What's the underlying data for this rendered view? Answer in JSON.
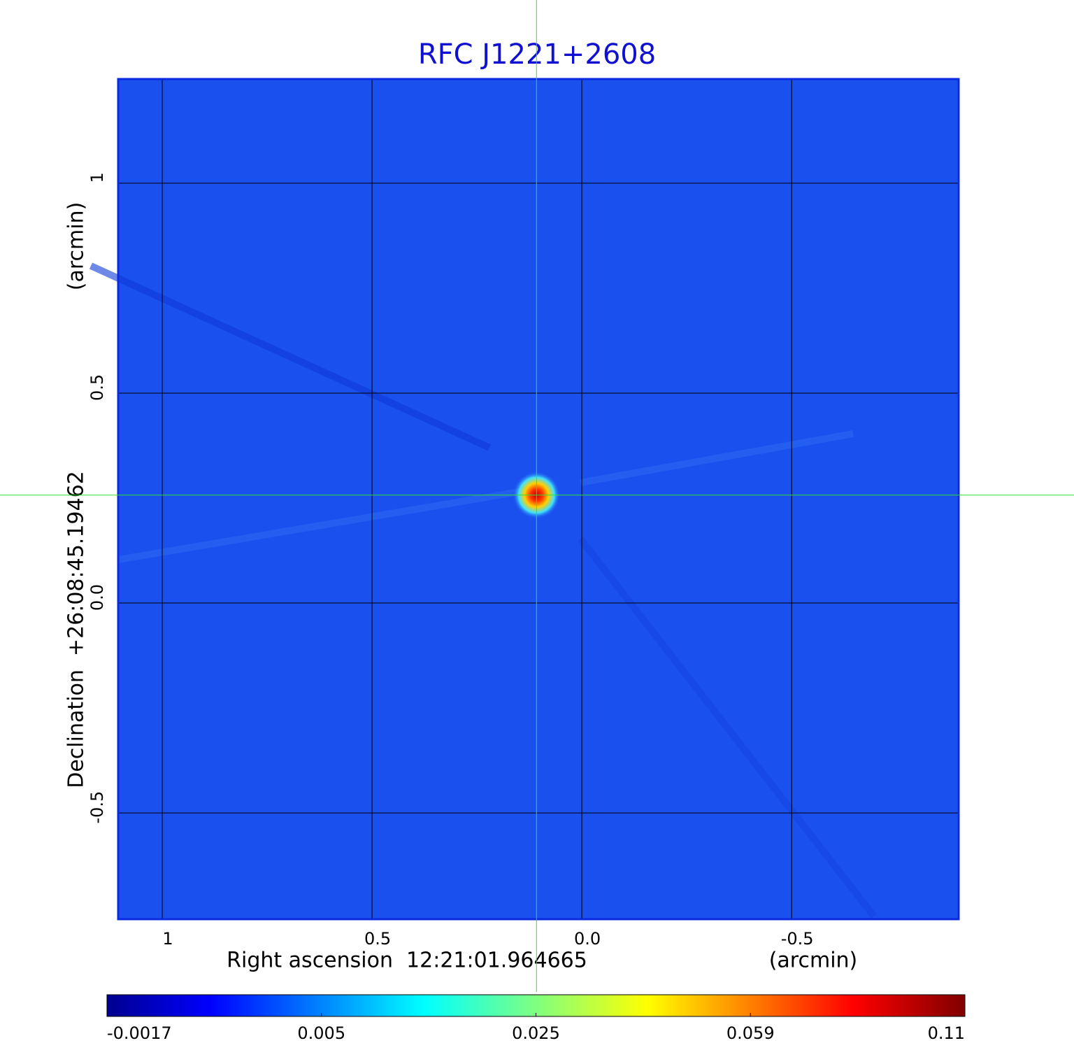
{
  "chart_data": {
    "type": "image",
    "title": "RFC J1221+2608",
    "x_label": "Right ascension  12:21:01.964665",
    "x_unit": "(arcmin)",
    "y_label": "Declination  +26:08:45.19462",
    "y_unit": "(arcmin)",
    "xlim": [
      1.105,
      -0.898
    ],
    "ylim": [
      -0.753,
      1.248
    ],
    "xticks": [
      1.0,
      0.5,
      {
        "value": 0,
        "label": "0.0"
      },
      -0.5
    ],
    "yticks": [
      -0.5,
      {
        "value": 0,
        "label": "0.0"
      },
      0.5,
      1.0
    ],
    "grid": true,
    "color": "#1a50ee",
    "colormap": "jet",
    "source": {
      "x": 0.108,
      "y": 0.257
    },
    "colorbar": {
      "ticks": [
        -0.0017,
        0.005,
        0.025,
        0.059,
        0.11
      ]
    }
  }
}
